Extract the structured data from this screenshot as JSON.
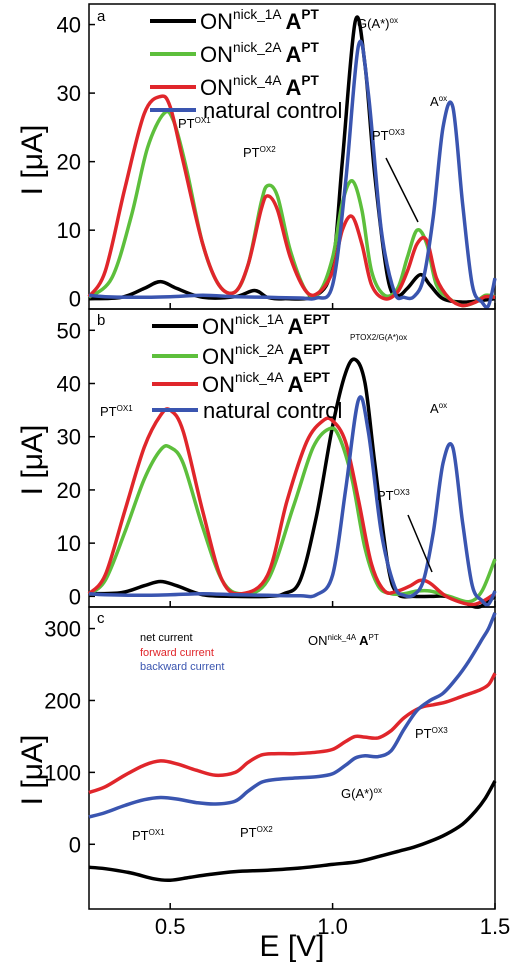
{
  "colors": {
    "nick_1A": "#000000",
    "nick_2A": "#5dbf3c",
    "nick_4A": "#e0262b",
    "natural": "#3a55b0",
    "net": "#000000",
    "forward": "#e0262b",
    "backward": "#3a55b0"
  },
  "chart_data": [
    {
      "panel": "a",
      "type": "line",
      "xlabel": "E [V]",
      "ylabel": "I [μA]",
      "xlim": [
        0.25,
        1.5
      ],
      "ylim": [
        -1.5,
        43
      ],
      "yticks": [
        0,
        10,
        20,
        30,
        40
      ],
      "legend": [
        {
          "key": "nick_1A",
          "prefix": "ON",
          "sup": "nick_1A",
          "bold": "A",
          "boldsup": "PT"
        },
        {
          "key": "nick_2A",
          "prefix": "ON",
          "sup": "nick_2A",
          "bold": "A",
          "boldsup": "PT"
        },
        {
          "key": "nick_4A",
          "prefix": "ON",
          "sup": "nick_4A",
          "bold": "A",
          "boldsup": "PT"
        },
        {
          "key": "natural",
          "text": "natural control"
        }
      ],
      "series": [
        {
          "key": "nick_1A",
          "x": [
            0.25,
            0.35,
            0.42,
            0.47,
            0.52,
            0.6,
            0.7,
            0.76,
            0.8,
            0.85,
            0.95,
            1.0,
            1.03,
            1.07,
            1.1,
            1.13,
            1.17,
            1.2,
            1.23,
            1.27,
            1.3,
            1.34,
            1.4,
            1.45,
            1.5
          ],
          "y": [
            0,
            0.2,
            1.5,
            2.5,
            1.5,
            0.2,
            0.3,
            1.2,
            0.2,
            0,
            0.5,
            5,
            20,
            40.5,
            34,
            18,
            3,
            0.5,
            1.5,
            3.5,
            2,
            0,
            -0.5,
            -0.3,
            0
          ]
        },
        {
          "key": "nick_2A",
          "x": [
            0.25,
            0.32,
            0.38,
            0.43,
            0.48,
            0.51,
            0.55,
            0.6,
            0.65,
            0.7,
            0.74,
            0.78,
            0.8,
            0.83,
            0.87,
            0.92,
            0.96,
            1.0,
            1.03,
            1.06,
            1.09,
            1.12,
            1.16,
            1.2,
            1.23,
            1.26,
            1.29,
            1.32,
            1.36,
            1.4,
            1.44,
            1.47,
            1.5
          ],
          "y": [
            0.2,
            3,
            12,
            22,
            27,
            26,
            19,
            8,
            2,
            1,
            5,
            14,
            16.5,
            15,
            7,
            1,
            1,
            6,
            14,
            17.2,
            13,
            4,
            0.5,
            1.5,
            6,
            10,
            8,
            2,
            0,
            -1,
            -0.5,
            0.5,
            0.3
          ]
        },
        {
          "key": "nick_4A",
          "x": [
            0.25,
            0.3,
            0.36,
            0.42,
            0.47,
            0.5,
            0.54,
            0.6,
            0.65,
            0.7,
            0.74,
            0.78,
            0.8,
            0.83,
            0.87,
            0.92,
            0.96,
            1.0,
            1.03,
            1.06,
            1.09,
            1.12,
            1.16,
            1.2,
            1.23,
            1.26,
            1.29,
            1.32,
            1.36,
            1.4,
            1.44,
            1.47,
            1.5
          ],
          "y": [
            0.3,
            4,
            16,
            27,
            29.5,
            28,
            20,
            8,
            2,
            1,
            5,
            13,
            15,
            13,
            6,
            1,
            1,
            4,
            10,
            12,
            8,
            2,
            0,
            1,
            4,
            8,
            8.5,
            3,
            0,
            -1,
            -0.5,
            0.3,
            0.2
          ]
        },
        {
          "key": "natural",
          "x": [
            0.25,
            0.3,
            0.4,
            0.5,
            0.6,
            0.7,
            0.8,
            0.9,
            0.95,
            1.0,
            1.04,
            1.08,
            1.11,
            1.15,
            1.19,
            1.22,
            1.25,
            1.28,
            1.31,
            1.34,
            1.37,
            1.4,
            1.43,
            1.46,
            1.48,
            1.5
          ],
          "y": [
            0.5,
            0.3,
            0.2,
            0.3,
            0.5,
            0.3,
            0.2,
            0.1,
            0.1,
            2,
            17,
            37,
            30,
            10,
            1,
            0.2,
            0.3,
            3,
            12,
            25,
            28,
            14,
            2,
            -0.5,
            -1,
            3
          ]
        }
      ],
      "annotations": {
        "pt_ox1": {
          "base": "PT",
          "sup": "OX1"
        },
        "pt_ox2": {
          "base": "PT",
          "sup": "OX2"
        },
        "pt_ox3": {
          "base": "PT",
          "sup": "OX3"
        },
        "g_ox": {
          "base": "G(A*)",
          "sup": "ox"
        },
        "a_ox": {
          "base": "A",
          "sup": "ox"
        }
      }
    },
    {
      "panel": "b",
      "type": "line",
      "xlabel": "E [V]",
      "ylabel": "I [μA]",
      "xlim": [
        0.25,
        1.5
      ],
      "ylim": [
        -2,
        54
      ],
      "yticks": [
        0,
        10,
        20,
        30,
        40,
        50
      ],
      "legend": [
        {
          "key": "nick_1A",
          "prefix": "ON",
          "sup": "nick_1A",
          "bold": "A",
          "boldsup": "EPT"
        },
        {
          "key": "nick_2A",
          "prefix": "ON",
          "sup": "nick_2A",
          "bold": "A",
          "boldsup": "EPT"
        },
        {
          "key": "nick_4A",
          "prefix": "ON",
          "sup": "nick_4A",
          "bold": "A",
          "boldsup": "EPT"
        },
        {
          "key": "natural",
          "text": "natural control"
        }
      ],
      "series": [
        {
          "key": "nick_1A",
          "x": [
            0.25,
            0.35,
            0.42,
            0.47,
            0.52,
            0.6,
            0.7,
            0.8,
            0.85,
            0.9,
            0.95,
            1.0,
            1.04,
            1.07,
            1.1,
            1.13,
            1.17,
            1.2,
            1.25,
            1.3,
            1.35,
            1.4,
            1.45,
            1.5
          ],
          "y": [
            0.5,
            0.7,
            2,
            2.8,
            2,
            0.3,
            0,
            0,
            0.5,
            3,
            15,
            32,
            42,
            44.5,
            40,
            25,
            6,
            0.5,
            0,
            0,
            0,
            -1,
            -2,
            0
          ]
        },
        {
          "key": "nick_2A",
          "x": [
            0.25,
            0.3,
            0.36,
            0.42,
            0.47,
            0.5,
            0.54,
            0.6,
            0.66,
            0.72,
            0.8,
            0.88,
            0.94,
            0.99,
            1.02,
            1.06,
            1.1,
            1.14,
            1.18,
            1.22,
            1.26,
            1.3,
            1.36,
            1.42,
            1.46,
            1.5
          ],
          "y": [
            0.5,
            3,
            12,
            22,
            27.5,
            28,
            25,
            13,
            3,
            0.5,
            3,
            17,
            28,
            31.5,
            30,
            22,
            9,
            2,
            0.5,
            0.5,
            1,
            1,
            0,
            -1,
            1,
            7
          ]
        },
        {
          "key": "nick_4A",
          "x": [
            0.25,
            0.3,
            0.36,
            0.42,
            0.47,
            0.5,
            0.54,
            0.6,
            0.66,
            0.72,
            0.8,
            0.86,
            0.92,
            0.97,
            1.0,
            1.04,
            1.08,
            1.12,
            1.16,
            1.2,
            1.24,
            1.27,
            1.3,
            1.35,
            1.42,
            1.46,
            1.5
          ],
          "y": [
            0.5,
            4,
            16,
            28,
            34,
            35,
            31,
            16,
            3,
            0.5,
            4,
            18,
            29,
            33,
            33,
            29,
            18,
            6,
            1,
            1,
            2,
            3,
            2.5,
            0,
            -1.5,
            -1,
            0.5
          ]
        },
        {
          "key": "natural",
          "x": [
            0.25,
            0.3,
            0.4,
            0.5,
            0.6,
            0.7,
            0.8,
            0.9,
            0.95,
            1.0,
            1.04,
            1.08,
            1.11,
            1.15,
            1.19,
            1.22,
            1.25,
            1.28,
            1.31,
            1.34,
            1.37,
            1.4,
            1.43,
            1.46,
            1.48,
            1.5
          ],
          "y": [
            0.5,
            0.3,
            0.2,
            0.3,
            0.5,
            0.3,
            0.2,
            0.1,
            0.3,
            4,
            20,
            37,
            31,
            12,
            2,
            0.2,
            0.3,
            3,
            12,
            25,
            28,
            14,
            2,
            -0.8,
            -1.5,
            1
          ]
        }
      ],
      "annotations": {
        "pt_ox1": {
          "base": "PT",
          "sup": "OX1"
        },
        "pt_ox3": {
          "base": "PT",
          "sup": "OX3"
        },
        "pt_ox2_g": {
          "base": "",
          "sup": "PTOX2/G(A*)ox"
        },
        "a_ox": {
          "base": "A",
          "sup": "ox"
        }
      }
    },
    {
      "panel": "c",
      "type": "line",
      "xlabel": "E [V]",
      "ylabel": "I [μA]",
      "xlim": [
        0.25,
        1.5
      ],
      "ylim": [
        -90,
        330
      ],
      "yticks": [
        0,
        100,
        200,
        300
      ],
      "xticks": [
        0.5,
        1.0,
        1.5
      ],
      "legend": [
        {
          "key": "net",
          "text": "net current"
        },
        {
          "key": "forward",
          "text": "forward current"
        },
        {
          "key": "backward",
          "text": "backward current"
        }
      ],
      "series": [
        {
          "key": "forward",
          "x": [
            0.25,
            0.3,
            0.36,
            0.42,
            0.47,
            0.52,
            0.58,
            0.64,
            0.7,
            0.74,
            0.78,
            0.82,
            0.88,
            0.95,
            1.0,
            1.04,
            1.07,
            1.1,
            1.14,
            1.18,
            1.22,
            1.27,
            1.31,
            1.35,
            1.4,
            1.45,
            1.48,
            1.5
          ],
          "y": [
            72,
            80,
            96,
            110,
            116,
            112,
            103,
            96,
            100,
            114,
            124,
            126,
            126,
            128,
            132,
            143,
            150,
            149,
            148,
            158,
            176,
            190,
            194,
            198,
            206,
            214,
            222,
            238
          ]
        },
        {
          "key": "backward",
          "x": [
            0.25,
            0.3,
            0.36,
            0.42,
            0.47,
            0.52,
            0.58,
            0.64,
            0.7,
            0.74,
            0.78,
            0.82,
            0.88,
            0.95,
            1.0,
            1.04,
            1.07,
            1.1,
            1.14,
            1.18,
            1.22,
            1.26,
            1.3,
            1.34,
            1.38,
            1.42,
            1.46,
            1.48,
            1.5
          ],
          "y": [
            38,
            44,
            54,
            62,
            65,
            63,
            58,
            56,
            60,
            74,
            86,
            90,
            92,
            94,
            98,
            110,
            120,
            123,
            122,
            130,
            160,
            186,
            200,
            210,
            230,
            255,
            285,
            300,
            322
          ]
        },
        {
          "key": "net",
          "x": [
            0.25,
            0.3,
            0.38,
            0.45,
            0.5,
            0.56,
            0.62,
            0.7,
            0.8,
            0.9,
            1.0,
            1.08,
            1.15,
            1.2,
            1.25,
            1.3,
            1.35,
            1.4,
            1.44,
            1.47,
            1.5
          ],
          "y": [
            -32,
            -34,
            -40,
            -48,
            -50,
            -46,
            -42,
            -38,
            -36,
            -33,
            -28,
            -24,
            -16,
            -10,
            -4,
            4,
            14,
            28,
            46,
            64,
            88
          ]
        }
      ],
      "annotations": {
        "title": {
          "base": "ON",
          "sup": "nick_4A",
          "bold": "A",
          "boldsup": "PT"
        },
        "pt_ox1": {
          "base": "PT",
          "sup": "OX1"
        },
        "pt_ox2": {
          "base": "PT",
          "sup": "OX2"
        },
        "pt_ox3": {
          "base": "PT",
          "sup": "OX3"
        },
        "g_ox": {
          "base": "G(A*)",
          "sup": "ox"
        }
      }
    }
  ]
}
